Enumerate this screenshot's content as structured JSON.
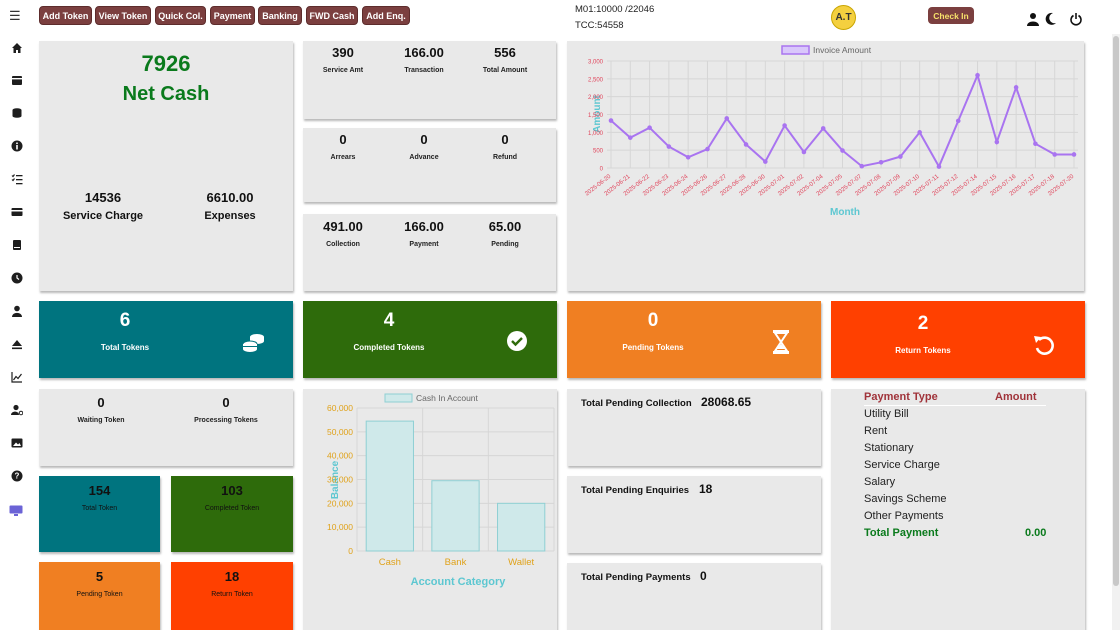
{
  "toolbar": {
    "buttons": [
      {
        "label": "Add Token"
      },
      {
        "label": "View Token"
      },
      {
        "label": "Quick Col."
      },
      {
        "label": "Payment"
      },
      {
        "label": "Banking"
      },
      {
        "label": "FWD Cash"
      },
      {
        "label": "Add Enq."
      }
    ],
    "info_line1": "M01:10000 /22046",
    "info_line2": "TCC:54558",
    "avatar_initials": "A.T",
    "checkin_label": "Check In"
  },
  "summary": {
    "net_cash_value": "7926",
    "net_cash_label": "Net Cash",
    "service_charge_value": "14536",
    "service_charge_label": "Service Charge",
    "expenses_value": "6610.00",
    "expenses_label": "Expenses"
  },
  "mini_cards": [
    [
      {
        "value": "390",
        "label": "Service Amt"
      },
      {
        "value": "166.00",
        "label": "Transaction"
      },
      {
        "value": "556",
        "label": "Total Amount"
      }
    ],
    [
      {
        "value": "0",
        "label": "Arrears"
      },
      {
        "value": "0",
        "label": "Advance"
      },
      {
        "value": "0",
        "label": "Refund"
      }
    ],
    [
      {
        "value": "491.00",
        "label": "Collection"
      },
      {
        "value": "166.00",
        "label": "Payment"
      },
      {
        "value": "65.00",
        "label": "Pending"
      }
    ]
  ],
  "chart_data": [
    {
      "type": "line",
      "legend": "Invoice Amount",
      "xlabel": "Month",
      "ylabel": "Amount",
      "ylim": [
        0,
        3000
      ],
      "yticks": [
        "3,000",
        "2,500",
        "2,000",
        "1,500",
        "1,000",
        "500",
        "0"
      ],
      "x": [
        "2025-06-20",
        "2025-06-21",
        "2025-06-22",
        "2025-06-23",
        "2025-06-24",
        "2025-06-26",
        "2025-06-27",
        "2025-06-28",
        "2025-06-30",
        "2025-07-01",
        "2025-07-02",
        "2025-07-04",
        "2025-07-05",
        "2025-07-07",
        "2025-07-08",
        "2025-07-09",
        "2025-07-10",
        "2025-07-11",
        "2025-07-12",
        "2025-07-14",
        "2025-07-15",
        "2025-07-16",
        "2025-07-17",
        "2025-07-18",
        "2025-07-20"
      ],
      "values": [
        1330,
        850,
        1130,
        600,
        300,
        530,
        1390,
        660,
        180,
        1190,
        450,
        1110,
        490,
        50,
        160,
        320,
        1000,
        40,
        1320,
        2600,
        730,
        2260,
        680,
        380,
        380
      ],
      "color": "#a974f0",
      "grid": true
    },
    {
      "type": "bar",
      "legend": "Cash In Account",
      "categories": [
        "Cash",
        "Bank",
        "Wallet"
      ],
      "values": [
        54500,
        29500,
        20000
      ],
      "xlabel": "Account Category",
      "ylabel": "Balance",
      "ylim": [
        0,
        60000
      ],
      "yticks": [
        "60,000",
        "50,000",
        "40,000",
        "30,000",
        "20,000",
        "10,000",
        "0"
      ],
      "color": "#cfe9ea",
      "grid": true
    }
  ],
  "tiles": [
    {
      "value": "6",
      "label": "Total Tokens",
      "color": "#00747f",
      "icon": "coins-icon"
    },
    {
      "value": "4",
      "label": "Completed Tokens",
      "color": "#2e6b0b",
      "icon": "check-circle-icon"
    },
    {
      "value": "0",
      "label": "Pending Tokens",
      "color": "#f07f22",
      "icon": "hourglass-icon"
    },
    {
      "value": "2",
      "label": "Return Tokens",
      "color": "#ff4000",
      "icon": "undo-icon"
    }
  ],
  "queue": {
    "waiting_value": "0",
    "waiting_label": "Waiting Token",
    "processing_value": "0",
    "processing_label": "Processing Tokens"
  },
  "small_tiles": [
    {
      "value": "154",
      "label": "Total Token",
      "color": "#00747f"
    },
    {
      "value": "103",
      "label": "Completed Token",
      "color": "#2e6b0b"
    },
    {
      "value": "5",
      "label": "Pending Token",
      "color": "#f07f22"
    },
    {
      "value": "18",
      "label": "Return Token",
      "color": "#ff4000"
    }
  ],
  "pending": [
    {
      "label": "Total Pending Collection",
      "value": "28068.65"
    },
    {
      "label": "Total Pending Enquiries",
      "value": "18"
    },
    {
      "label": "Total Pending Payments",
      "value": "0"
    }
  ],
  "payment_types": {
    "header_type": "Payment Type",
    "header_amount": "Amount",
    "items": [
      "Utility Bill",
      "Rent",
      "Stationary",
      "Service Charge",
      "Salary",
      "Savings Scheme",
      "Other Payments"
    ],
    "total_label": "Total Payment",
    "total_value": "0.00"
  }
}
